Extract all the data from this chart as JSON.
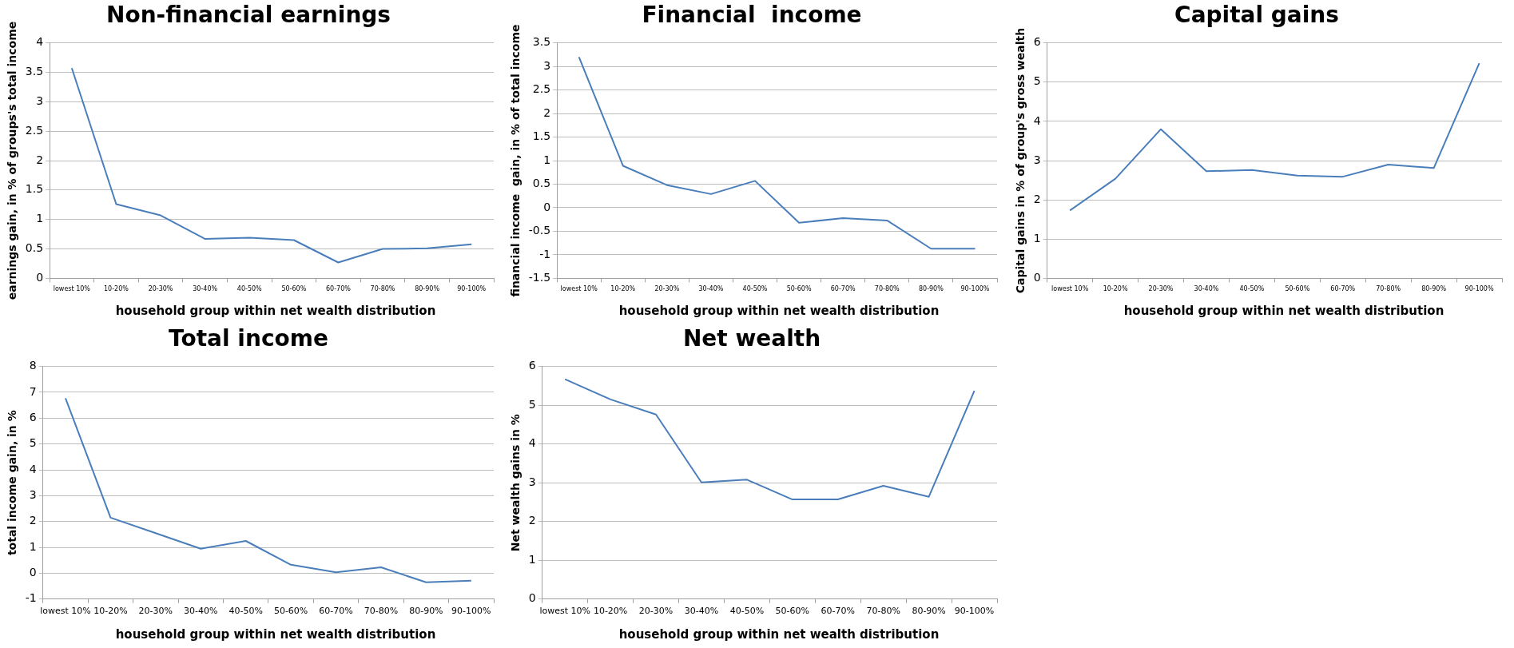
{
  "chart_data": [
    {
      "type": "line",
      "title": "Non-financial earnings",
      "xlabel": "household group within net wealth distribution",
      "ylabel": "earnings gain, in % of groups's total income",
      "categories": [
        "lowest 10%",
        "10-20%",
        "20-30%",
        "30-40%",
        "40-50%",
        "50-60%",
        "60-70%",
        "70-80%",
        "80-90%",
        "90-100%"
      ],
      "series": [
        {
          "color": "#4a7ebb",
          "values": [
            3.57,
            1.26,
            1.07,
            0.67,
            0.69,
            0.65,
            0.27,
            0.5,
            0.51,
            0.58
          ]
        }
      ],
      "ylim": [
        0,
        4
      ],
      "yticks": [
        0,
        0.5,
        1,
        1.5,
        2,
        2.5,
        3,
        3.5,
        4
      ],
      "grid": "y",
      "marker": "none"
    },
    {
      "type": "line",
      "title": "Financial  income",
      "xlabel": "household group within net wealth distribution",
      "ylabel": "financial income  gain, in % of total income",
      "categories": [
        "lowest 10%",
        "10-20%",
        "20-30%",
        "30-40%",
        "40-50%",
        "50-60%",
        "60-70%",
        "70-80%",
        "80-90%",
        "90-100%"
      ],
      "series": [
        {
          "color": "#4a7ebb",
          "values": [
            3.2,
            0.89,
            0.48,
            0.29,
            0.57,
            -0.32,
            -0.22,
            -0.27,
            -0.87,
            -0.87
          ]
        }
      ],
      "ylim": [
        -1.5,
        3.5
      ],
      "yticks": [
        -1.5,
        -1,
        -0.5,
        0,
        0.5,
        1,
        1.5,
        2,
        2.5,
        3,
        3.5
      ],
      "grid": "y",
      "marker": "none"
    },
    {
      "type": "line",
      "title": "Capital gains",
      "xlabel": "household group within net wealth distribution",
      "ylabel": "Capital gains in % of group's gross wealth",
      "categories": [
        "lowest 10%",
        "10-20%",
        "20-30%",
        "30-40%",
        "40-50%",
        "50-60%",
        "60-70%",
        "70-80%",
        "80-90%",
        "90-100%"
      ],
      "series": [
        {
          "color": "#4a7ebb",
          "values": [
            1.73,
            2.54,
            3.8,
            2.73,
            2.76,
            2.62,
            2.59,
            2.9,
            2.81,
            5.48
          ]
        }
      ],
      "ylim": [
        0,
        6
      ],
      "yticks": [
        0,
        1,
        2,
        3,
        4,
        5,
        6
      ],
      "grid": "y",
      "marker": "none"
    },
    {
      "type": "line",
      "title": "Total income",
      "xlabel": "household group within net wealth distribution",
      "ylabel": "total income gain, in %",
      "categories": [
        "lowest 10%",
        "10-20%",
        "20-30%",
        "30-40%",
        "40-50%",
        "50-60%",
        "60-70%",
        "70-80%",
        "80-90%",
        "90-100%"
      ],
      "series": [
        {
          "color": "#4a7ebb",
          "values": [
            6.77,
            2.15,
            1.55,
            0.95,
            1.25,
            0.33,
            0.04,
            0.23,
            -0.35,
            -0.29
          ]
        }
      ],
      "ylim": [
        -1,
        8
      ],
      "yticks": [
        -1,
        0,
        1,
        2,
        3,
        4,
        5,
        6,
        7,
        8
      ],
      "grid": "y",
      "marker": "none"
    },
    {
      "type": "line",
      "title": "Net wealth",
      "xlabel": "household group within net wealth distribution",
      "ylabel": "Net wealth gains in %",
      "categories": [
        "lowest 10%",
        "10-20%",
        "20-30%",
        "30-40%",
        "40-50%",
        "50-60%",
        "60-70%",
        "70-80%",
        "80-90%",
        "90-100%"
      ],
      "series": [
        {
          "color": "#4a7ebb",
          "values": [
            5.67,
            5.15,
            4.76,
            3.01,
            3.08,
            2.57,
            2.57,
            2.92,
            2.64,
            5.37
          ]
        }
      ],
      "ylim": [
        0,
        6
      ],
      "yticks": [
        0,
        1,
        2,
        3,
        4,
        5,
        6
      ],
      "grid": "y",
      "marker": "none"
    }
  ]
}
